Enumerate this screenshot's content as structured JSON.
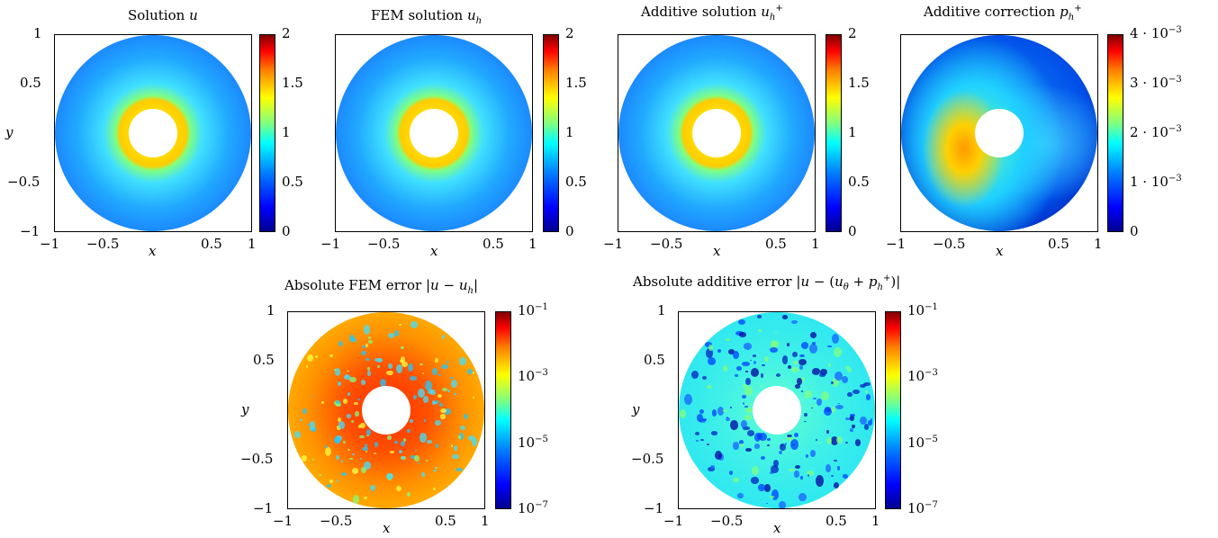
{
  "charts": [
    {
      "title": "Solution u",
      "cbar_ticks": [
        "2",
        "1.5",
        "1",
        "0.5",
        "0"
      ]
    },
    {
      "title": "FEM solution u_h",
      "cbar_ticks": [
        "2",
        "1.5",
        "1",
        "0.5",
        "0"
      ]
    },
    {
      "title": "Additive solution u_h^+",
      "cbar_ticks": [
        "2",
        "1.5",
        "1",
        "0.5",
        "0"
      ]
    },
    {
      "title": "Additive correction p_h^+",
      "cbar_ticks": [
        "4·10^-3",
        "3·10^-3",
        "2·10^-3",
        "1·10^-3",
        "0"
      ]
    },
    {
      "title": "Absolute FEM error |u − u_h|",
      "cbar_ticks": [
        "10^-1",
        "10^-3",
        "10^-5",
        "10^-7"
      ]
    },
    {
      "title": "Absolute additive error |u − (u_θ + p_h^+)|",
      "cbar_ticks": [
        "10^-1",
        "10^-3",
        "10^-5",
        "10^-7"
      ]
    }
  ],
  "axes": {
    "xlabel": "x",
    "ylabel": "y",
    "xticks": [
      "−1",
      "−0.5",
      "0.5",
      "1"
    ],
    "yticks": [
      "1",
      "0.5",
      "−0.5",
      "−1"
    ]
  },
  "colormap": "jet",
  "chart_data": [
    {
      "type": "heatmap",
      "title": "Solution u",
      "xlabel": "x",
      "ylabel": "y",
      "xlim": [
        -1,
        1
      ],
      "ylim": [
        -1,
        1
      ],
      "colorbar_range": [
        0,
        2
      ],
      "colorbar_ticks": [
        0,
        0.5,
        1,
        1.5,
        2
      ]
    },
    {
      "type": "heatmap",
      "title": "FEM solution u_h",
      "xlim": [
        -1,
        1
      ],
      "ylim": [
        -1,
        1
      ],
      "colorbar_range": [
        0,
        2
      ],
      "colorbar_ticks": [
        0,
        0.5,
        1,
        1.5,
        2
      ]
    },
    {
      "type": "heatmap",
      "title": "Additive solution u_h^+",
      "xlim": [
        -1,
        1
      ],
      "ylim": [
        -1,
        1
      ],
      "colorbar_range": [
        0,
        2
      ],
      "colorbar_ticks": [
        0,
        0.5,
        1,
        1.5,
        2
      ]
    },
    {
      "type": "heatmap",
      "title": "Additive correction p_h^+",
      "xlabel": "x",
      "xlim": [
        -1,
        1
      ],
      "ylim": [
        -1,
        1
      ],
      "colorbar_range": [
        0,
        0.004
      ],
      "colorbar_ticks": [
        0,
        0.001,
        0.002,
        0.003,
        0.004
      ]
    },
    {
      "type": "heatmap",
      "title": "Absolute FEM error |u − u_h|",
      "xlabel": "x",
      "ylabel": "y",
      "xlim": [
        -1,
        1
      ],
      "ylim": [
        -1,
        1
      ],
      "colorbar_scale": "log",
      "colorbar_range": [
        1e-07,
        0.1
      ],
      "colorbar_ticks": [
        1e-07,
        1e-05,
        0.001,
        0.1
      ]
    },
    {
      "type": "heatmap",
      "title": "Absolute additive error |u − (u_θ + p_h^+)|",
      "xlabel": "x",
      "ylabel": "y",
      "xlim": [
        -1,
        1
      ],
      "ylim": [
        -1,
        1
      ],
      "colorbar_scale": "log",
      "colorbar_range": [
        1e-07,
        0.1
      ],
      "colorbar_ticks": [
        1e-07,
        1e-05,
        0.001,
        0.1
      ]
    }
  ]
}
